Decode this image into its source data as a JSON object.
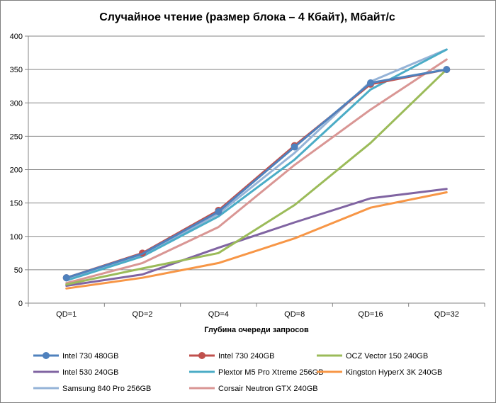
{
  "chart_data": {
    "type": "line",
    "title": "Случайное чтение (размер блока – 4 Кбайт), Мбайт/с",
    "xlabel": "Глубина очереди запросов",
    "ylabel": "",
    "categories": [
      "QD=1",
      "QD=2",
      "QD=4",
      "QD=8",
      "QD=16",
      "QD=32"
    ],
    "ylim": [
      0,
      400
    ],
    "yticks": [
      0,
      50,
      100,
      150,
      200,
      250,
      300,
      350,
      400
    ],
    "grid": "horizontal",
    "legend_position": "bottom",
    "series": [
      {
        "name": "Intel 730 480GB",
        "color": "#4f81bd",
        "marker": "circle",
        "values": [
          38,
          74,
          137,
          234,
          330,
          350
        ]
      },
      {
        "name": "Intel 730 240GB",
        "color": "#c0504d",
        "marker": "circle",
        "values": [
          38,
          75,
          139,
          236,
          328,
          350
        ]
      },
      {
        "name": "OCZ Vector 150 240GB",
        "color": "#9bbb59",
        "marker": "none",
        "values": [
          28,
          52,
          75,
          147,
          240,
          350
        ]
      },
      {
        "name": "Intel 530 240GB",
        "color": "#8064a2",
        "marker": "none",
        "values": [
          26,
          43,
          83,
          121,
          157,
          171
        ]
      },
      {
        "name": "Plextor M5 Pro Xtreme 256GB",
        "color": "#4bacc6",
        "marker": "none",
        "values": [
          34,
          70,
          130,
          215,
          320,
          380
        ]
      },
      {
        "name": "Kingston HyperX 3K 240GB",
        "color": "#f79646",
        "marker": "none",
        "values": [
          22,
          38,
          60,
          97,
          143,
          166
        ]
      },
      {
        "name": "Samsung 840 Pro 256GB",
        "color": "#95b3d7",
        "marker": "none",
        "values": [
          36,
          72,
          134,
          225,
          332,
          380
        ]
      },
      {
        "name": "Corsair Neutron GTX 240GB",
        "color": "#d99694",
        "marker": "none",
        "values": [
          30,
          60,
          114,
          207,
          290,
          365
        ]
      }
    ]
  }
}
